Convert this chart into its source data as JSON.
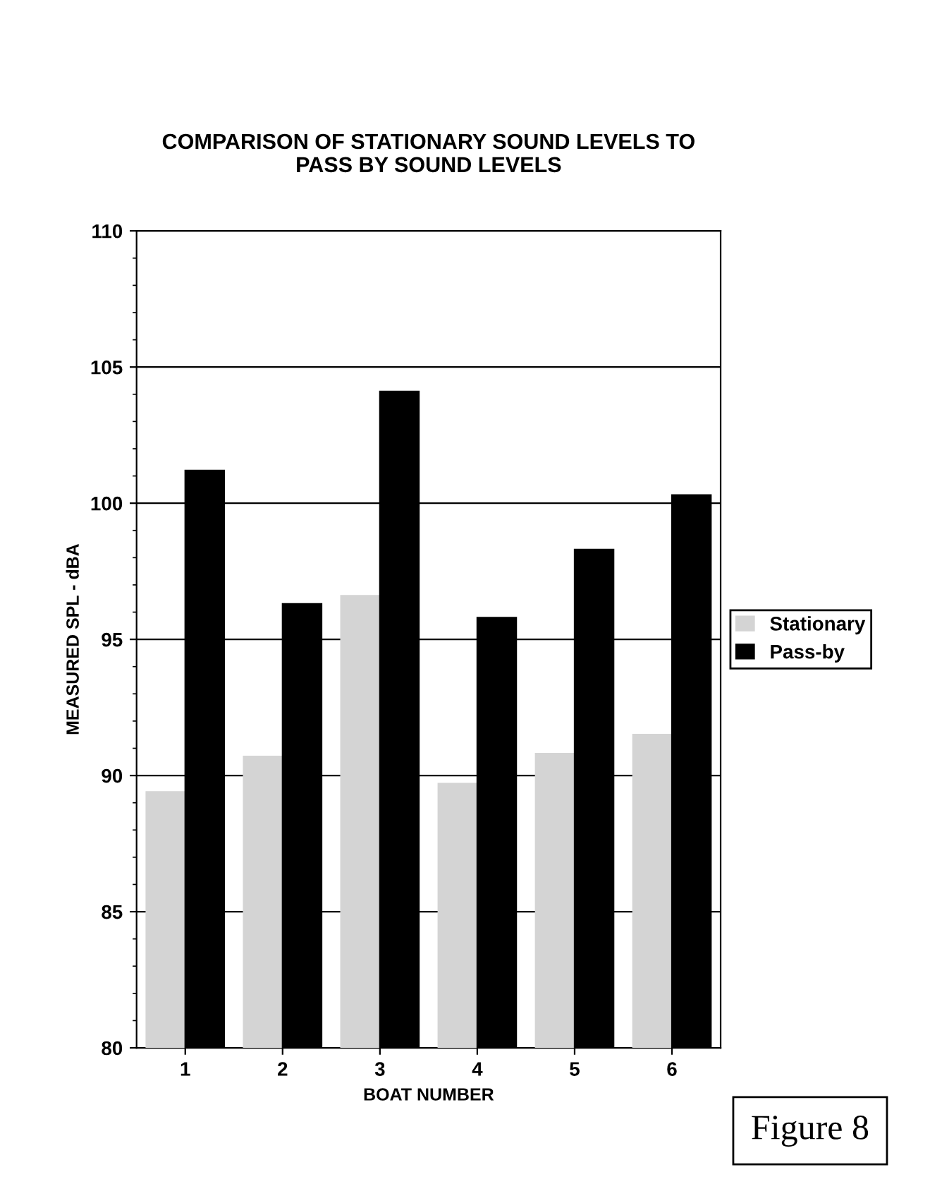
{
  "chart_data": {
    "type": "bar",
    "title": "COMPARISON OF STATIONARY SOUND LEVELS TO\nPASS BY SOUND LEVELS",
    "xlabel": "BOAT NUMBER",
    "ylabel": "MEASURED SPL - dBA",
    "categories": [
      "1",
      "2",
      "3",
      "4",
      "5",
      "6"
    ],
    "series": [
      {
        "name": "Stationary",
        "color": "#d4d4d4",
        "values": [
          89.4,
          90.7,
          96.6,
          89.7,
          90.8,
          91.5
        ]
      },
      {
        "name": "Pass-by",
        "color": "#000000",
        "values": [
          101.2,
          96.3,
          104.1,
          95.8,
          98.3,
          100.3
        ]
      }
    ],
    "ylim": [
      80,
      110
    ],
    "yticks": [
      80,
      85,
      90,
      95,
      100,
      105,
      110
    ],
    "grid": "y",
    "legend": "right",
    "annotations": [
      "Figure 8"
    ]
  }
}
